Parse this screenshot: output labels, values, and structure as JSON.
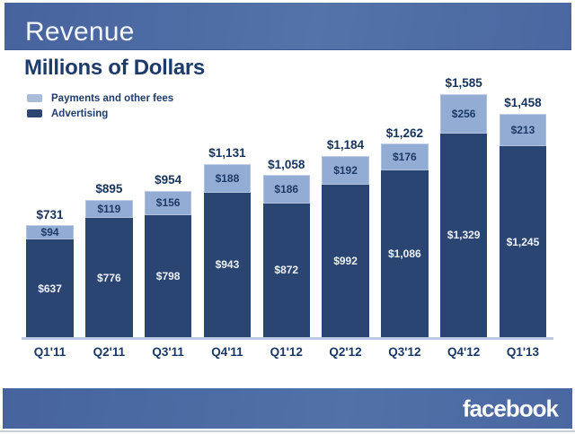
{
  "header": {
    "title": "Revenue"
  },
  "chart_data": {
    "type": "stacked-bar",
    "title": "Millions of Dollars",
    "unit": "millions of US dollars",
    "value_prefix": "$",
    "categories": [
      "Q1'11",
      "Q2'11",
      "Q3'11",
      "Q4'11",
      "Q1'12",
      "Q2'12",
      "Q3'12",
      "Q4'12",
      "Q1'13"
    ],
    "series": [
      {
        "name": "Advertising",
        "color": "#2a4571",
        "label_color": "#edf1f7",
        "values": [
          637,
          776,
          798,
          943,
          872,
          992,
          1086,
          1329,
          1245
        ]
      },
      {
        "name": "Payments and other fees",
        "color": "#92acd4",
        "label_color": "#1d3a66",
        "values": [
          94,
          119,
          156,
          188,
          186,
          192,
          176,
          256,
          213
        ]
      }
    ],
    "totals": [
      731,
      895,
      954,
      1131,
      1058,
      1184,
      1262,
      1585,
      1458
    ],
    "ylim": [
      0,
      1585
    ],
    "grid": false,
    "legend_position": "top-left",
    "legend": [
      {
        "label": "Payments and other fees",
        "color": "#a9bcd8"
      },
      {
        "label": "Advertising",
        "color": "#2c4671"
      }
    ]
  },
  "footer": {
    "logo_text": "facebook"
  },
  "colors": {
    "header_band": "#5070a6",
    "footer_band": "#4e6ea8",
    "axis_line": "#b9c9e2",
    "title_text": "#1c3b6b",
    "total_text": "#16335c"
  }
}
